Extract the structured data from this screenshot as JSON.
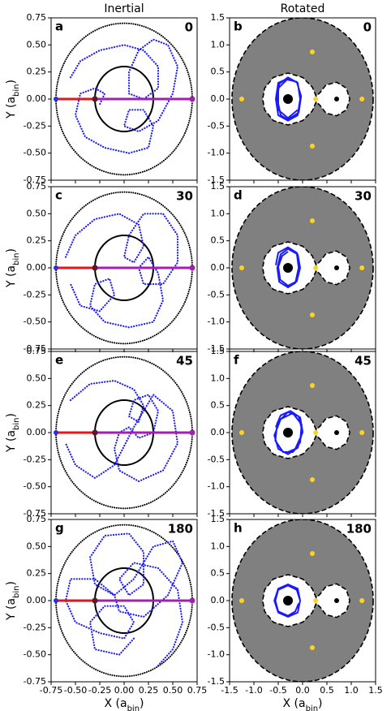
{
  "column_titles": [
    "Inertial",
    "Rotated"
  ],
  "rotated_frame": {
    "boundary": {
      "rx": 1.45,
      "ry": 1.5
    },
    "lobe": {
      "x": [
        0.28,
        0.2,
        0.0,
        -0.3,
        -0.6,
        -0.78,
        -0.82,
        -0.78,
        -0.6,
        -0.3,
        0.0,
        0.2,
        0.28,
        0.36,
        0.48,
        0.7,
        0.9,
        0.97,
        0.9,
        0.7,
        0.48,
        0.36
      ],
      "y": [
        0.05,
        0.22,
        0.4,
        0.48,
        0.4,
        0.2,
        0.0,
        -0.2,
        -0.4,
        -0.48,
        -0.4,
        -0.22,
        -0.05,
        -0.12,
        -0.26,
        -0.31,
        -0.2,
        0.0,
        0.2,
        0.31,
        0.26,
        0.12
      ]
    },
    "stars": {
      "x": [
        -0.3,
        0.7
      ],
      "y": [
        0,
        0
      ]
    },
    "lagrange": {
      "color": "#ffd21f",
      "x": [
        -1.25,
        0.27,
        1.22,
        0.2,
        0.2
      ],
      "y": [
        0,
        0,
        0,
        0.87,
        -0.87
      ]
    }
  },
  "chart_data": [
    {
      "type": "orbit",
      "panel_label": "a",
      "annotation": "0",
      "xlim": [
        -0.75,
        0.75
      ],
      "ylim": [
        -0.75,
        0.75
      ],
      "xticks": [
        -0.75,
        -0.5,
        -0.25,
        0,
        0.25,
        0.5,
        0.75
      ],
      "yticks": [
        -0.75,
        {
          "value": -0.5,
          "label": "-0.50"
        },
        -0.25,
        {
          "value": 0,
          "label": "0.00"
        },
        0.25,
        {
          "value": 0.5,
          "label": "0.50"
        },
        0.75
      ],
      "ylabel": [
        "Y (a",
        "bin",
        ")"
      ],
      "circles": [
        {
          "r": 0.7,
          "style": "dotted"
        },
        {
          "r": 0.3,
          "style": "solid"
        }
      ],
      "segments": [
        {
          "color": "#e8141c",
          "x": [
            -0.7,
            -0.3
          ],
          "y": [
            0,
            0
          ]
        },
        {
          "color": "#a21fb0",
          "x": [
            -0.3,
            0.7
          ],
          "y": [
            0,
            0
          ]
        }
      ],
      "series": [
        {
          "color": "#1a1aff",
          "x": [
            -0.55,
            -0.45,
            -0.25,
            0,
            0.2,
            0.35,
            0.35,
            0.2,
            0.05,
            0.05,
            0.15,
            0.3,
            0.45,
            0.55,
            0.5,
            0.35,
            0.15,
            0,
            0.05,
            0.2,
            0.3,
            0.25,
            0.05,
            -0.2,
            -0.4,
            -0.5,
            -0.45,
            -0.3,
            -0.2,
            -0.25
          ],
          "y": [
            0.2,
            0.35,
            0.45,
            0.5,
            0.45,
            0.3,
            0.1,
            0,
            0.05,
            0.25,
            0.45,
            0.55,
            0.5,
            0.3,
            0.05,
            -0.2,
            -0.3,
            -0.25,
            -0.1,
            -0.1,
            -0.25,
            -0.45,
            -0.5,
            -0.45,
            -0.35,
            -0.15,
            0.05,
            0.1,
            0.05,
            -0.05
          ]
        }
      ]
    },
    {
      "type": "rotating",
      "panel_label": "b",
      "annotation": "0",
      "xlim": [
        -1.5,
        1.5
      ],
      "ylim": [
        -1.5,
        1.5
      ],
      "xticks": [
        -1.5,
        -1,
        -0.5,
        0,
        0.5,
        1,
        1.5
      ],
      "yticks": [
        -1.5,
        {
          "value": -1,
          "label": "-1.0"
        },
        -0.5,
        {
          "value": 0,
          "label": "0.0"
        },
        0.5,
        {
          "value": 1,
          "label": "1.0"
        },
        1.5
      ],
      "series": [
        {
          "color": "#1a1aff",
          "x": [
            -0.1,
            -0.3,
            -0.5,
            -0.55,
            -0.5,
            -0.3,
            -0.1,
            -0.05,
            -0.1,
            -0.3,
            -0.48,
            -0.52,
            -0.45,
            -0.3,
            -0.08,
            -0.03,
            -0.12,
            -0.32,
            -0.5,
            -0.5,
            -0.3,
            -0.1
          ],
          "y": [
            0.3,
            0.38,
            0.3,
            0,
            -0.3,
            -0.4,
            -0.3,
            0,
            0.3,
            0.4,
            0.28,
            0,
            -0.3,
            -0.38,
            -0.25,
            0.05,
            0.32,
            0.36,
            0.2,
            -0.2,
            -0.35,
            -0.2
          ]
        }
      ]
    },
    {
      "type": "orbit",
      "panel_label": "c",
      "annotation": "30",
      "xlim": [
        -0.75,
        0.75
      ],
      "ylim": [
        -0.75,
        0.75
      ],
      "xticks": [
        -0.75,
        -0.5,
        -0.25,
        0,
        0.25,
        0.5,
        0.75
      ],
      "yticks": [
        -0.75,
        {
          "value": -0.5,
          "label": "-0.50"
        },
        -0.25,
        {
          "value": 0,
          "label": "0.00"
        },
        0.25,
        {
          "value": 0.5,
          "label": "0.50"
        },
        0.75
      ],
      "ylabel": [
        "Y (a",
        "bin",
        ")"
      ],
      "circles": [
        {
          "r": 0.7,
          "style": "dotted"
        },
        {
          "r": 0.3,
          "style": "solid"
        }
      ],
      "segments": [
        {
          "color": "#e8141c",
          "x": [
            -0.7,
            -0.3
          ],
          "y": [
            0,
            0
          ]
        },
        {
          "color": "#a21fb0",
          "x": [
            -0.3,
            0.7
          ],
          "y": [
            0,
            0
          ]
        }
      ],
      "series": [
        {
          "color": "#1a1aff",
          "x": [
            -0.6,
            -0.5,
            -0.3,
            -0.05,
            0.15,
            0.2,
            0.1,
            0,
            0.05,
            0.2,
            0.4,
            0.55,
            0.55,
            0.4,
            0.2,
            0.15,
            0.25,
            0.35,
            0.4,
            0.3,
            0.05,
            -0.2,
            -0.35,
            -0.3,
            -0.15,
            -0.1,
            -0.25,
            -0.45,
            -0.55
          ],
          "y": [
            0.1,
            0.3,
            0.45,
            0.5,
            0.4,
            0.2,
            0.05,
            0.1,
            0.3,
            0.5,
            0.5,
            0.3,
            0.05,
            -0.15,
            -0.15,
            0,
            0.1,
            -0.05,
            -0.3,
            -0.5,
            -0.55,
            -0.5,
            -0.35,
            -0.15,
            -0.1,
            -0.25,
            -0.4,
            -0.35,
            -0.15
          ]
        }
      ]
    },
    {
      "type": "rotating",
      "panel_label": "d",
      "annotation": "30",
      "xlim": [
        -1.5,
        1.5
      ],
      "ylim": [
        -1.5,
        1.5
      ],
      "xticks": [
        -1.5,
        -1,
        -0.5,
        0,
        0.5,
        1,
        1.5
      ],
      "yticks": [
        -1.5,
        {
          "value": -1,
          "label": "-1.0"
        },
        -0.5,
        {
          "value": 0,
          "label": "0.0"
        },
        0.5,
        {
          "value": 1,
          "label": "1.0"
        },
        1.5
      ],
      "series": [
        {
          "color": "#1a1aff",
          "x": [
            -0.55,
            -0.5,
            -0.3,
            -0.12,
            -0.08,
            -0.15,
            -0.3,
            -0.48,
            -0.52,
            -0.45,
            -0.3,
            -0.1,
            -0.05,
            -0.12,
            -0.3,
            -0.46,
            -0.5,
            -0.42,
            -0.3
          ],
          "y": [
            0.05,
            0.28,
            0.38,
            0.28,
            0,
            -0.28,
            -0.36,
            -0.26,
            0,
            0.25,
            0.35,
            0.25,
            0,
            -0.25,
            -0.33,
            -0.22,
            0.02,
            0.22,
            0.3
          ]
        }
      ]
    },
    {
      "type": "orbit",
      "panel_label": "e",
      "annotation": "45",
      "xlim": [
        -0.75,
        0.75
      ],
      "ylim": [
        -0.75,
        0.75
      ],
      "xticks": [
        -0.75,
        -0.5,
        -0.25,
        0,
        0.25,
        0.5,
        0.75
      ],
      "yticks": [
        -0.75,
        {
          "value": -0.5,
          "label": "-0.50"
        },
        -0.25,
        {
          "value": 0,
          "label": "0.00"
        },
        0.25,
        {
          "value": 0.5,
          "label": "0.50"
        },
        0.75
      ],
      "ylabel": [
        "Y (a",
        "bin",
        ")"
      ],
      "circles": [
        {
          "r": 0.7,
          "style": "dotted"
        },
        {
          "r": 0.3,
          "style": "solid"
        }
      ],
      "segments": [
        {
          "color": "#e8141c",
          "x": [
            -0.7,
            -0.3
          ],
          "y": [
            0,
            0
          ]
        },
        {
          "color": "#a21fb0",
          "x": [
            -0.3,
            0.7
          ],
          "y": [
            0,
            0
          ]
        }
      ],
      "series": [
        {
          "color": "#1a1aff",
          "x": [
            -0.55,
            -0.35,
            -0.1,
            0.1,
            0.2,
            0.15,
            0.05,
            0.1,
            0.25,
            0.35,
            0.3,
            0.15,
            0.05,
            -0.05,
            -0.1,
            -0.05,
            0.15,
            0.4,
            0.55,
            0.5,
            0.3,
            0.1,
            -0.1,
            -0.3,
            -0.5,
            -0.6
          ],
          "y": [
            0.3,
            0.45,
            0.48,
            0.4,
            0.25,
            0.1,
            0.15,
            0.3,
            0.35,
            0.2,
            0,
            -0.05,
            0.05,
            0,
            -0.15,
            -0.35,
            -0.45,
            -0.35,
            -0.1,
            0.2,
            0.35,
            0.05,
            -0.3,
            -0.42,
            -0.3,
            -0.1
          ]
        }
      ]
    },
    {
      "type": "rotating",
      "panel_label": "f",
      "annotation": "45",
      "xlim": [
        -1.5,
        1.5
      ],
      "ylim": [
        -1.5,
        1.5
      ],
      "xticks": [
        -1.5,
        -1,
        -0.5,
        0,
        0.5,
        1,
        1.5
      ],
      "yticks": [
        -1.5,
        {
          "value": -1,
          "label": "-1.0"
        },
        -0.5,
        {
          "value": 0,
          "label": "0.0"
        },
        0.5,
        {
          "value": 1,
          "label": "1.0"
        },
        1.5
      ],
      "series": [
        {
          "color": "#1a1aff",
          "x": [
            -0.55,
            -0.45,
            -0.25,
            -0.05,
            0.0,
            -0.1,
            -0.3,
            -0.5,
            -0.58,
            -0.45,
            -0.2,
            -0.02,
            -0.05,
            -0.2,
            -0.4,
            -0.56,
            -0.52,
            -0.3,
            -0.08,
            0.0,
            -0.15,
            -0.35
          ],
          "y": [
            0.1,
            0.32,
            0.4,
            0.28,
            0.02,
            -0.28,
            -0.4,
            -0.3,
            -0.05,
            0.25,
            0.36,
            0.15,
            -0.18,
            -0.36,
            -0.36,
            -0.15,
            0.18,
            0.38,
            0.3,
            0.0,
            -0.3,
            -0.38
          ]
        }
      ]
    },
    {
      "type": "orbit",
      "panel_label": "g",
      "annotation": "180",
      "xlim": [
        -0.75,
        0.75
      ],
      "ylim": [
        -0.75,
        0.75
      ],
      "xticks": [
        -0.75,
        {
          "value": -0.5,
          "label": "-0.50"
        },
        -0.25,
        {
          "value": 0,
          "label": "0.00"
        },
        0.25,
        {
          "value": 0.5,
          "label": "0.50"
        },
        0.75
      ],
      "yticks": [
        -0.75,
        {
          "value": -0.5,
          "label": "-0.50"
        },
        -0.25,
        {
          "value": 0,
          "label": "0.00"
        },
        0.25,
        {
          "value": 0.5,
          "label": "0.50"
        },
        0.75
      ],
      "ylabel": [
        "Y (a",
        "bin",
        ")"
      ],
      "xlabel": [
        "X (a",
        "bin",
        ")"
      ],
      "circles": [
        {
          "r": 0.7,
          "style": "dotted"
        },
        {
          "r": 0.3,
          "style": "solid"
        }
      ],
      "segments": [
        {
          "color": "#e8141c",
          "x": [
            -0.7,
            -0.3
          ],
          "y": [
            0,
            0
          ]
        },
        {
          "color": "#a21fb0",
          "x": [
            -0.3,
            0.7
          ],
          "y": [
            0,
            0
          ]
        }
      ],
      "series": [
        {
          "color": "#1a1aff",
          "x": [
            0.35,
            0.5,
            0.6,
            0.55,
            0.35,
            0.1,
            -0.05,
            0.05,
            0.2,
            0.2,
            0.05,
            -0.2,
            -0.35,
            -0.3,
            -0.1,
            0.1,
            0.3,
            0.5,
            0.6,
            0.45,
            0.2,
            -0.05,
            -0.1,
            -0.3,
            -0.55,
            -0.6,
            -0.5,
            -0.25,
            0,
            0.1,
            0,
            -0.2,
            -0.35,
            -0.3,
            -0.05,
            0.1
          ],
          "y": [
            -0.6,
            -0.45,
            -0.2,
            0.1,
            0.3,
            0.35,
            0.2,
            0.05,
            0.15,
            0.45,
            0.62,
            0.6,
            0.4,
            0.15,
            0.05,
            0.2,
            0.5,
            0.55,
            0.35,
            0.05,
            -0.15,
            -0.1,
            0.05,
            0.2,
            0.2,
            0,
            -0.2,
            -0.3,
            -0.35,
            -0.2,
            -0.05,
            -0.05,
            -0.2,
            -0.45,
            -0.5,
            -0.35
          ]
        }
      ]
    },
    {
      "type": "rotating",
      "panel_label": "h",
      "annotation": "180",
      "xlim": [
        -1.5,
        1.5
      ],
      "ylim": [
        -1.5,
        1.5
      ],
      "xticks": [
        -1.5,
        {
          "value": -1,
          "label": "-1.0"
        },
        -0.5,
        {
          "value": 0,
          "label": "0.0"
        },
        0.5,
        {
          "value": 1,
          "label": "1.0"
        },
        1.5
      ],
      "yticks": [
        -1.5,
        {
          "value": -1,
          "label": "-1.0"
        },
        -0.5,
        {
          "value": 0,
          "label": "0.0"
        },
        0.5,
        {
          "value": 1,
          "label": "1.0"
        },
        1.5
      ],
      "xlabel": [
        "X (a",
        "bin",
        ")"
      ],
      "series": [
        {
          "color": "#1a1aff",
          "x": [
            -0.05,
            -0.1,
            -0.3,
            -0.5,
            -0.58,
            -0.5,
            -0.3,
            -0.1,
            -0.05,
            -0.12,
            -0.3,
            -0.5,
            -0.56,
            -0.5,
            -0.3,
            -0.15,
            -0.08
          ],
          "y": [
            0,
            0.22,
            0.3,
            0.22,
            0,
            -0.22,
            -0.3,
            -0.22,
            0,
            0.2,
            0.28,
            0.2,
            0,
            -0.2,
            -0.28,
            -0.2,
            -0.05
          ]
        }
      ]
    }
  ]
}
